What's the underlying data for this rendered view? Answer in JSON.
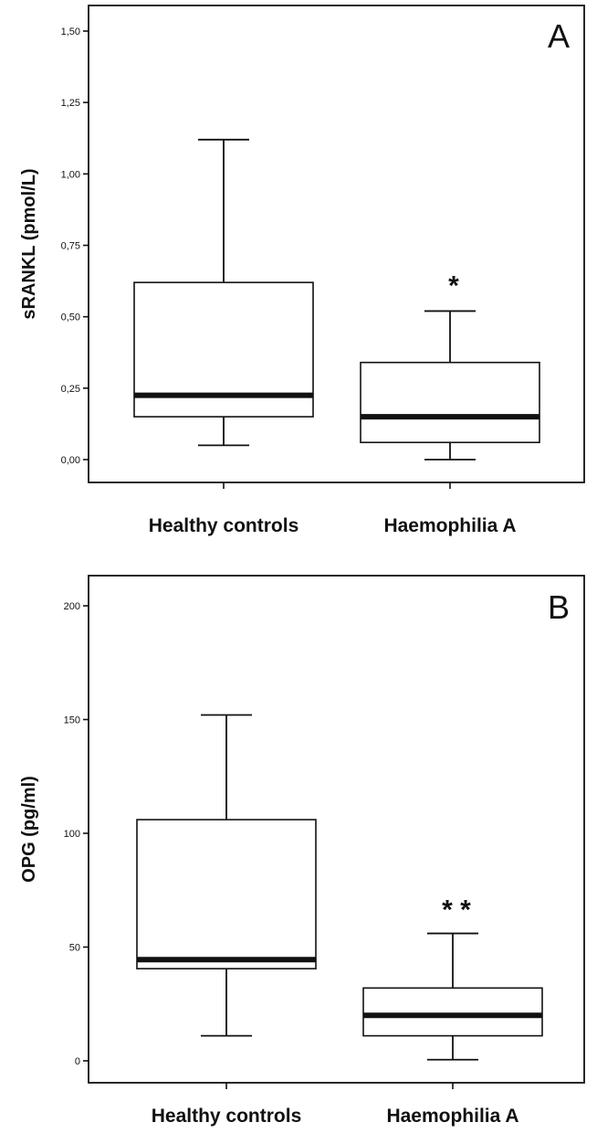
{
  "chart_data": [
    {
      "type": "box",
      "panel_label": "A",
      "ylabel": "sRANKL (pmol/L)",
      "ylim": [
        0,
        1.5
      ],
      "yticks": [
        0,
        0.25,
        0.5,
        0.75,
        1.0,
        1.25,
        1.5
      ],
      "ytick_labels": [
        "0,00",
        "0,25",
        "0,50",
        "0,75",
        "1,00",
        "1,25",
        "1,50"
      ],
      "categories": [
        "Healthy controls",
        "Haemophilia A"
      ],
      "boxes": [
        {
          "category": "Healthy controls",
          "min": 0.05,
          "q1": 0.15,
          "median": 0.225,
          "q3": 0.62,
          "max": 1.12,
          "annotation": ""
        },
        {
          "category": "Haemophilia A",
          "min": 0.0,
          "q1": 0.06,
          "median": 0.15,
          "q3": 0.34,
          "max": 0.52,
          "annotation": "*"
        }
      ]
    },
    {
      "type": "box",
      "panel_label": "B",
      "ylabel": "OPG (pg/ml)",
      "ylim": [
        0,
        200
      ],
      "yticks": [
        0,
        50,
        100,
        150,
        200
      ],
      "ytick_labels": [
        "0",
        "50",
        "100",
        "150",
        "200"
      ],
      "categories": [
        "Healthy controls",
        "Haemophilia A"
      ],
      "boxes": [
        {
          "category": "Healthy controls",
          "min": 11,
          "q1": 40.5,
          "median": 44.5,
          "q3": 106,
          "max": 152,
          "annotation": ""
        },
        {
          "category": "Haemophilia A",
          "min": 0.5,
          "q1": 11,
          "median": 20,
          "q3": 32,
          "max": 56,
          "annotation": "* *"
        }
      ]
    }
  ]
}
